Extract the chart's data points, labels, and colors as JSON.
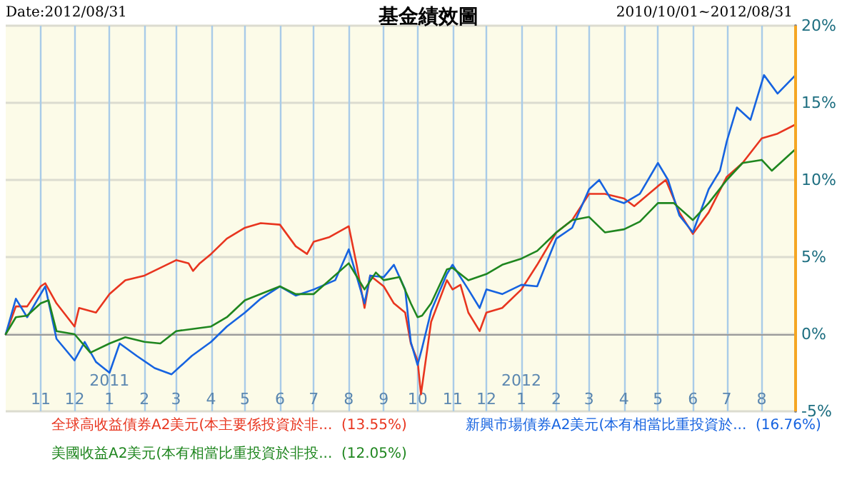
{
  "chart_data": {
    "type": "line",
    "title": "基金績效圖",
    "annotations": [
      "Date:2012/08/31",
      "2010/10/01~2012/08/31"
    ],
    "xlim": [
      "2010-10-01",
      "2012-08-31"
    ],
    "xticks": [
      {
        "value": "2010-11-01",
        "label": "11"
      },
      {
        "value": "2010-12-01",
        "label": "12"
      },
      {
        "value": "2011-01-01",
        "label": "2011\n1"
      },
      {
        "value": "2011-02-01",
        "label": "2"
      },
      {
        "value": "2011-03-01",
        "label": "3"
      },
      {
        "value": "2011-04-01",
        "label": "4"
      },
      {
        "value": "2011-05-01",
        "label": "5"
      },
      {
        "value": "2011-06-01",
        "label": "6"
      },
      {
        "value": "2011-07-01",
        "label": "7"
      },
      {
        "value": "2011-08-01",
        "label": "8"
      },
      {
        "value": "2011-09-01",
        "label": "9"
      },
      {
        "value": "2011-10-01",
        "label": "10"
      },
      {
        "value": "2011-11-01",
        "label": "11"
      },
      {
        "value": "2011-12-01",
        "label": "12"
      },
      {
        "value": "2012-01-01",
        "label": "2012\n1"
      },
      {
        "value": "2012-02-01",
        "label": "2"
      },
      {
        "value": "2012-03-01",
        "label": "3"
      },
      {
        "value": "2012-04-01",
        "label": "4"
      },
      {
        "value": "2012-05-01",
        "label": "5"
      },
      {
        "value": "2012-06-01",
        "label": "6"
      },
      {
        "value": "2012-07-01",
        "label": "7"
      },
      {
        "value": "2012-08-01",
        "label": "8"
      }
    ],
    "ylim": [
      -5,
      20
    ],
    "yticks": [
      {
        "value": -5,
        "label": "-5%"
      },
      {
        "value": 0,
        "label": "0%"
      },
      {
        "value": 5,
        "label": "5%"
      },
      {
        "value": 10,
        "label": "10%"
      },
      {
        "value": 15,
        "label": "15%"
      },
      {
        "value": 20,
        "label": "20%"
      }
    ],
    "grid": true,
    "marker": "none",
    "line_style": "solid",
    "ref_lines": [
      {
        "axis": "x",
        "value": "2012-08-31",
        "label": null,
        "color": "#f5a623"
      }
    ],
    "series": [
      {
        "name": "全球高收益債券A2美元(本主要係投資於非...  (13.55%)",
        "color": "#e8351f",
        "x": [
          "2010-10-01",
          "2010-10-10",
          "2010-10-20",
          "2010-11-01",
          "2010-11-05",
          "2010-11-15",
          "2010-12-01",
          "2010-12-05",
          "2010-12-20",
          "2011-01-01",
          "2011-01-15",
          "2011-02-01",
          "2011-02-15",
          "2011-03-01",
          "2011-03-12",
          "2011-03-16",
          "2011-03-22",
          "2011-04-01",
          "2011-04-15",
          "2011-05-01",
          "2011-05-15",
          "2011-06-01",
          "2011-06-15",
          "2011-06-25",
          "2011-07-01",
          "2011-07-15",
          "2011-08-01",
          "2011-08-08",
          "2011-08-15",
          "2011-08-20",
          "2011-09-01",
          "2011-09-10",
          "2011-09-20",
          "2011-09-25",
          "2011-10-01",
          "2011-10-04",
          "2011-10-13",
          "2011-10-27",
          "2011-11-01",
          "2011-11-08",
          "2011-11-15",
          "2011-11-25",
          "2011-12-01",
          "2011-12-15",
          "2012-01-01",
          "2012-01-15",
          "2012-02-01",
          "2012-02-15",
          "2012-03-01",
          "2012-03-15",
          "2012-04-01",
          "2012-04-10",
          "2012-05-01",
          "2012-05-08",
          "2012-05-20",
          "2012-06-01",
          "2012-06-15",
          "2012-07-01",
          "2012-07-15",
          "2012-08-01",
          "2012-08-15",
          "2012-08-31"
        ],
        "values": [
          0,
          1.8,
          1.8,
          3.1,
          3.3,
          2.0,
          0.5,
          1.7,
          1.4,
          2.6,
          3.5,
          3.8,
          4.3,
          4.8,
          4.6,
          4.1,
          4.6,
          5.2,
          6.2,
          6.9,
          7.2,
          7.1,
          5.7,
          5.2,
          6.0,
          6.3,
          7.0,
          4.5,
          1.7,
          3.8,
          3.1,
          2.0,
          1.4,
          -0.6,
          -1.7,
          -3.9,
          0.8,
          3.5,
          2.9,
          3.2,
          1.4,
          0.2,
          1.4,
          1.7,
          2.9,
          4.5,
          6.6,
          7.4,
          9.1,
          9.1,
          8.8,
          8.3,
          9.6,
          10.0,
          7.9,
          6.5,
          7.9,
          10.2,
          11.1,
          12.7,
          13.0,
          13.6
        ]
      },
      {
        "name": "新興市場債券A2美元(本有相當比重投資於...  (16.76%)",
        "color": "#1663e0",
        "x": [
          "2010-10-01",
          "2010-10-10",
          "2010-10-20",
          "2010-11-01",
          "2010-11-05",
          "2010-11-15",
          "2010-12-01",
          "2010-12-10",
          "2010-12-20",
          "2011-01-01",
          "2011-01-10",
          "2011-01-25",
          "2011-02-10",
          "2011-02-25",
          "2011-03-15",
          "2011-04-01",
          "2011-04-15",
          "2011-05-01",
          "2011-05-15",
          "2011-06-01",
          "2011-06-15",
          "2011-07-01",
          "2011-07-20",
          "2011-08-01",
          "2011-08-15",
          "2011-08-20",
          "2011-09-01",
          "2011-09-10",
          "2011-09-20",
          "2011-09-25",
          "2011-10-01",
          "2011-10-05",
          "2011-10-13",
          "2011-10-27",
          "2011-11-01",
          "2011-11-15",
          "2011-11-25",
          "2011-12-01",
          "2011-12-15",
          "2012-01-01",
          "2012-01-15",
          "2012-02-01",
          "2012-02-15",
          "2012-03-01",
          "2012-03-10",
          "2012-03-20",
          "2012-04-01",
          "2012-04-15",
          "2012-05-01",
          "2012-05-10",
          "2012-05-20",
          "2012-06-01",
          "2012-06-15",
          "2012-06-25",
          "2012-07-01",
          "2012-07-10",
          "2012-07-22",
          "2012-08-03",
          "2012-08-15",
          "2012-08-31"
        ],
        "values": [
          0,
          2.3,
          1.1,
          2.6,
          3.1,
          -0.3,
          -1.7,
          -0.5,
          -1.8,
          -2.5,
          -0.6,
          -1.4,
          -2.2,
          -2.6,
          -1.4,
          -0.5,
          0.5,
          1.4,
          2.3,
          3.1,
          2.5,
          2.9,
          3.5,
          5.5,
          2.0,
          3.8,
          3.7,
          4.5,
          2.9,
          -0.5,
          -2.0,
          -0.9,
          1.5,
          3.9,
          4.5,
          2.9,
          1.7,
          2.9,
          2.6,
          3.2,
          3.1,
          6.2,
          6.9,
          9.4,
          10.0,
          8.8,
          8.5,
          9.1,
          11.1,
          10.0,
          7.7,
          6.6,
          9.4,
          10.6,
          12.5,
          14.7,
          13.9,
          16.8,
          15.6,
          16.8
        ]
      },
      {
        "name": "美國收益A2美元(本有相當比重投資於非投...  (12.05%)",
        "color": "#1f861f",
        "x": [
          "2010-10-01",
          "2010-10-10",
          "2010-10-20",
          "2010-11-01",
          "2010-11-08",
          "2010-11-15",
          "2010-12-01",
          "2010-12-15",
          "2011-01-01",
          "2011-01-15",
          "2011-02-01",
          "2011-02-15",
          "2011-03-01",
          "2011-04-01",
          "2011-04-15",
          "2011-05-01",
          "2011-06-01",
          "2011-06-15",
          "2011-07-01",
          "2011-08-01",
          "2011-08-15",
          "2011-08-25",
          "2011-09-01",
          "2011-09-15",
          "2011-09-25",
          "2011-10-01",
          "2011-10-05",
          "2011-10-13",
          "2011-10-27",
          "2011-11-01",
          "2011-11-15",
          "2011-12-01",
          "2011-12-15",
          "2012-01-01",
          "2012-01-15",
          "2012-02-01",
          "2012-02-15",
          "2012-03-01",
          "2012-03-15",
          "2012-04-01",
          "2012-04-15",
          "2012-05-01",
          "2012-05-15",
          "2012-06-01",
          "2012-06-15",
          "2012-07-01",
          "2012-07-15",
          "2012-08-01",
          "2012-08-10",
          "2012-08-31"
        ],
        "values": [
          0,
          1.1,
          1.2,
          2.0,
          2.2,
          0.2,
          0,
          -1.2,
          -0.6,
          -0.2,
          -0.5,
          -0.6,
          0.2,
          0.5,
          1.1,
          2.2,
          3.1,
          2.6,
          2.6,
          4.6,
          2.9,
          4.0,
          3.5,
          3.7,
          2.0,
          1.1,
          1.2,
          2.0,
          4.2,
          4.3,
          3.5,
          3.9,
          4.5,
          4.9,
          5.4,
          6.6,
          7.4,
          7.6,
          6.6,
          6.8,
          7.3,
          8.5,
          8.5,
          7.4,
          8.5,
          10.0,
          11.1,
          11.3,
          10.6,
          12.0
        ]
      }
    ]
  }
}
